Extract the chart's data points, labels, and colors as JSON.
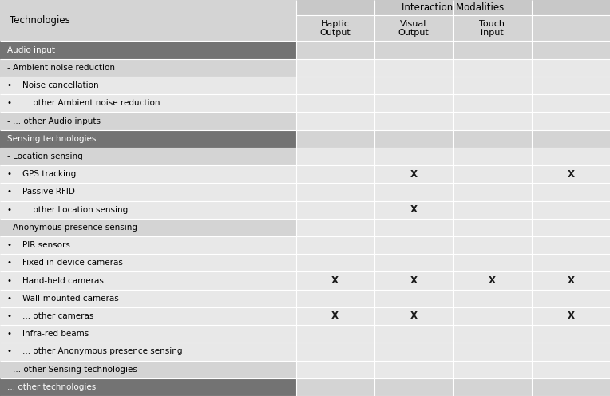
{
  "title_row": "Interaction Modalities",
  "header_col": "Technologies",
  "col_headers": [
    "Haptic\nOutput",
    "Visual\nOutput",
    "Touch\ninput",
    "..."
  ],
  "rows": [
    {
      "label": "Audio input",
      "type": "section_dark",
      "values": [
        "",
        "",
        "",
        ""
      ]
    },
    {
      "label": "- Ambient noise reduction",
      "type": "subheader",
      "values": [
        "",
        "",
        "",
        ""
      ]
    },
    {
      "label": "•    Noise cancellation",
      "type": "item",
      "values": [
        "",
        "",
        "",
        ""
      ]
    },
    {
      "label": "•    ... other Ambient noise reduction",
      "type": "item",
      "values": [
        "",
        "",
        "",
        ""
      ]
    },
    {
      "label": "- ... other Audio inputs",
      "type": "subheader",
      "values": [
        "",
        "",
        "",
        ""
      ]
    },
    {
      "label": "Sensing technologies",
      "type": "section_dark",
      "values": [
        "",
        "",
        "",
        ""
      ]
    },
    {
      "label": "- Location sensing",
      "type": "subheader",
      "values": [
        "",
        "",
        "",
        ""
      ]
    },
    {
      "label": "•    GPS tracking",
      "type": "item",
      "values": [
        "",
        "X",
        "",
        "X"
      ]
    },
    {
      "label": "•    Passive RFID",
      "type": "item",
      "values": [
        "",
        "",
        "",
        ""
      ]
    },
    {
      "label": "•    ... other Location sensing",
      "type": "item",
      "values": [
        "",
        "X",
        "",
        ""
      ]
    },
    {
      "label": "- Anonymous presence sensing",
      "type": "subheader",
      "values": [
        "",
        "",
        "",
        ""
      ]
    },
    {
      "label": "•    PIR sensors",
      "type": "item",
      "values": [
        "",
        "",
        "",
        ""
      ]
    },
    {
      "label": "•    Fixed in-device cameras",
      "type": "item",
      "values": [
        "",
        "",
        "",
        ""
      ]
    },
    {
      "label": "•    Hand-held cameras",
      "type": "item",
      "values": [
        "X",
        "X",
        "X",
        "X"
      ]
    },
    {
      "label": "•    Wall-mounted cameras",
      "type": "item",
      "values": [
        "",
        "",
        "",
        ""
      ]
    },
    {
      "label": "•    ... other cameras",
      "type": "item",
      "values": [
        "X",
        "X",
        "",
        "X"
      ]
    },
    {
      "label": "•    Infra-red beams",
      "type": "item",
      "values": [
        "",
        "",
        "",
        ""
      ]
    },
    {
      "label": "•    ... other Anonymous presence sensing",
      "type": "item",
      "values": [
        "",
        "",
        "",
        ""
      ]
    },
    {
      "label": "- ... other Sensing technologies",
      "type": "subheader",
      "values": [
        "",
        "",
        "",
        ""
      ]
    },
    {
      "label": "... other technologies",
      "type": "section_dark",
      "values": [
        "",
        "",
        "",
        ""
      ]
    }
  ],
  "section_dark_bg": "#737373",
  "section_dark_fg": "#ffffff",
  "subheader_bg": "#d4d4d4",
  "subheader_fg": "#000000",
  "item_bg": "#e8e8e8",
  "item_fg": "#000000",
  "data_cell_bg": "#e8e8e8",
  "header_top_bg": "#c8c8c8",
  "header_top_fg": "#000000",
  "header_col_bg": "#d4d4d4",
  "header_col_fg": "#000000",
  "x_color": "#1a1a1a",
  "border_color": "#ffffff",
  "fig_width": 7.64,
  "fig_height": 4.96,
  "dpi": 100
}
